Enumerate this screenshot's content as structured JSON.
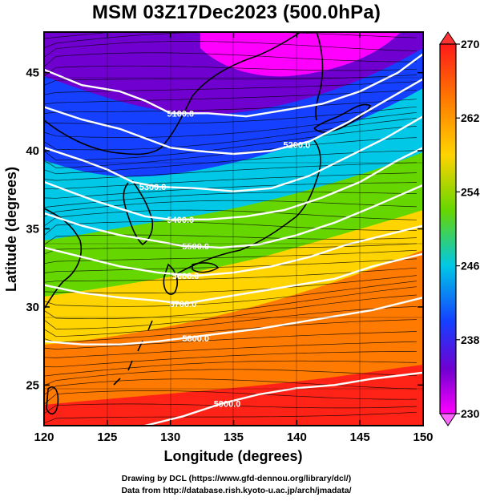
{
  "title": "MSM 03Z17Dec2023 (500.0hPa)",
  "credits": {
    "line1": "Drawing by DCL (https://www.gfd-dennou.org/library/dcl/)",
    "line2": "Data from http://database.rish.kyoto-u.ac.jp/arch/jmadata/"
  },
  "chart_data": {
    "type": "heatmap",
    "title": "MSM 03Z17Dec2023 (500.0hPa)",
    "xlabel": "Longitude (degrees)",
    "ylabel": "Latitude  (degrees)",
    "xlim": [
      120,
      150
    ],
    "ylim": [
      22.4,
      47.6
    ],
    "x_ticks": [
      120,
      125,
      130,
      135,
      140,
      145,
      150
    ],
    "y_ticks": [
      25,
      30,
      35,
      40,
      45
    ],
    "grid": true,
    "colorbar": {
      "range": [
        230,
        270
      ],
      "ticks": [
        270,
        262,
        254,
        246,
        238,
        230
      ],
      "colors": [
        "#ff1a1a",
        "#ff7a00",
        "#ffd400",
        "#66d600",
        "#00c8e6",
        "#1540ff",
        "#7000d0",
        "#ff00ff"
      ],
      "position": "right"
    },
    "temperature_field_samples": [
      {
        "lat": 46,
        "lon": 121,
        "value": 234
      },
      {
        "lat": 45,
        "lon": 133,
        "value": 231
      },
      {
        "lat": 46,
        "lon": 146,
        "value": 234
      },
      {
        "lat": 42,
        "lon": 125,
        "value": 240
      },
      {
        "lat": 42,
        "lon": 140,
        "value": 238
      },
      {
        "lat": 38,
        "lon": 125,
        "value": 246
      },
      {
        "lat": 38,
        "lon": 145,
        "value": 252
      },
      {
        "lat": 35,
        "lon": 122,
        "value": 252
      },
      {
        "lat": 34,
        "lon": 135,
        "value": 254
      },
      {
        "lat": 31,
        "lon": 130,
        "value": 258
      },
      {
        "lat": 28,
        "lon": 130,
        "value": 262
      },
      {
        "lat": 25,
        "lon": 140,
        "value": 266
      },
      {
        "lat": 23,
        "lon": 130,
        "value": 268
      }
    ],
    "contour_labels": [
      "5100.0",
      "5200.0",
      "5300.0",
      "5400.0",
      "5500.0",
      "5600.0",
      "5700.0",
      "5800.0",
      "5900.0"
    ],
    "contours": [
      {
        "label": "5100.0",
        "points": [
          [
            120,
            45.2
          ],
          [
            123,
            44.2
          ],
          [
            126,
            43.8
          ],
          [
            128,
            43.2
          ],
          [
            130,
            42.4
          ],
          [
            133,
            42.4
          ],
          [
            136,
            42.2
          ],
          [
            139,
            42.6
          ],
          [
            142,
            43.0
          ],
          [
            145,
            43.8
          ],
          [
            148,
            45.0
          ],
          [
            150,
            46.2
          ]
        ]
      },
      {
        "label": "5200.0",
        "points": [
          [
            120,
            42.8
          ],
          [
            123,
            42.0
          ],
          [
            126,
            41.4
          ],
          [
            128,
            40.8
          ],
          [
            130,
            40.2
          ],
          [
            132,
            40.0
          ],
          [
            135,
            39.8
          ],
          [
            138,
            40.0
          ],
          [
            141,
            40.6
          ],
          [
            144,
            41.8
          ],
          [
            147,
            43.2
          ],
          [
            150,
            44.6
          ]
        ]
      },
      {
        "label": "5300.0",
        "points": [
          [
            120,
            40.2
          ],
          [
            123,
            39.4
          ],
          [
            125,
            38.8
          ],
          [
            127,
            38.0
          ],
          [
            129,
            37.7
          ],
          [
            132,
            37.6
          ],
          [
            135,
            37.4
          ],
          [
            138,
            37.6
          ],
          [
            141,
            38.4
          ],
          [
            144,
            39.6
          ],
          [
            147,
            40.8
          ],
          [
            150,
            42.2
          ]
        ]
      },
      {
        "label": "5400.0",
        "points": [
          [
            120,
            38.0
          ],
          [
            122,
            37.4
          ],
          [
            124,
            36.8
          ],
          [
            126,
            36.3
          ],
          [
            128,
            35.8
          ],
          [
            130,
            35.6
          ],
          [
            133,
            35.6
          ],
          [
            136,
            35.8
          ],
          [
            139,
            36.2
          ],
          [
            142,
            37.0
          ],
          [
            145,
            38.0
          ],
          [
            148,
            39.4
          ],
          [
            150,
            40.2
          ]
        ]
      },
      {
        "label": "5500.0",
        "points": [
          [
            120,
            36.0
          ],
          [
            123,
            35.2
          ],
          [
            126,
            34.6
          ],
          [
            129,
            34.2
          ],
          [
            131,
            33.9
          ],
          [
            134,
            33.8
          ],
          [
            137,
            34.0
          ],
          [
            140,
            34.6
          ],
          [
            143,
            35.4
          ],
          [
            146,
            36.4
          ],
          [
            150,
            37.8
          ]
        ]
      },
      {
        "label": "5600.0",
        "points": [
          [
            120,
            33.8
          ],
          [
            123,
            33.2
          ],
          [
            126,
            32.6
          ],
          [
            129,
            32.2
          ],
          [
            132,
            32.0
          ],
          [
            135,
            32.2
          ],
          [
            138,
            32.6
          ],
          [
            141,
            33.2
          ],
          [
            144,
            34.0
          ],
          [
            147,
            34.6
          ],
          [
            150,
            35.2
          ]
        ]
      },
      {
        "label": "5700.0",
        "points": [
          [
            120,
            31.4
          ],
          [
            123,
            30.9
          ],
          [
            126,
            30.6
          ],
          [
            129,
            30.4
          ],
          [
            131,
            30.2
          ],
          [
            134,
            30.6
          ],
          [
            137,
            31.0
          ],
          [
            140,
            31.4
          ],
          [
            143,
            31.8
          ],
          [
            146,
            32.6
          ],
          [
            150,
            33.4
          ]
        ]
      },
      {
        "label": "5800.0",
        "points": [
          [
            120,
            27.8
          ],
          [
            123,
            27.6
          ],
          [
            126,
            27.6
          ],
          [
            129,
            27.8
          ],
          [
            131,
            28.0
          ],
          [
            134,
            28.3
          ],
          [
            137,
            28.6
          ],
          [
            140,
            29.0
          ],
          [
            143,
            29.4
          ],
          [
            146,
            29.8
          ],
          [
            150,
            30.6
          ]
        ]
      },
      {
        "label": "5900.0",
        "points": [
          [
            128,
            22.4
          ],
          [
            131,
            23.0
          ],
          [
            134,
            23.8
          ],
          [
            137,
            24.4
          ],
          [
            140,
            24.8
          ],
          [
            143,
            25.0
          ],
          [
            146,
            25.4
          ],
          [
            150,
            25.8
          ]
        ]
      }
    ],
    "contour_label_positions": [
      {
        "label": "5100.0",
        "lon": 130.8,
        "lat": 42.4
      },
      {
        "label": "5200.0",
        "lon": 140.0,
        "lat": 40.4
      },
      {
        "label": "5300.0",
        "lon": 128.6,
        "lat": 37.7
      },
      {
        "label": "5400.0",
        "lon": 130.8,
        "lat": 35.6
      },
      {
        "label": "5500.0",
        "lon": 132.0,
        "lat": 33.9
      },
      {
        "label": "5600.0",
        "lon": 131.2,
        "lat": 32.0
      },
      {
        "label": "5700.0",
        "lon": 131.0,
        "lat": 30.2
      },
      {
        "label": "5800.0",
        "lon": 132.0,
        "lat": 28.0
      },
      {
        "label": "5900.0",
        "lon": 134.5,
        "lat": 23.8
      }
    ]
  }
}
